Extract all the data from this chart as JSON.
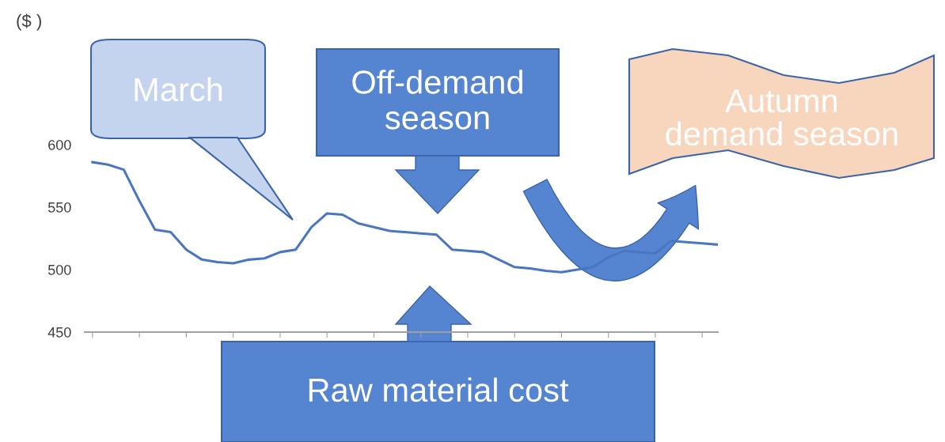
{
  "chart_data": {
    "type": "line",
    "categories": [
      null,
      null,
      null,
      null,
      null,
      null,
      null,
      null,
      null,
      null,
      null,
      null,
      null,
      null,
      null,
      null,
      null,
      null,
      null,
      null,
      null,
      null,
      null,
      null,
      null,
      null,
      null,
      null,
      null,
      null,
      null,
      null,
      null,
      null,
      null,
      null,
      null,
      null,
      null,
      null,
      null
    ],
    "series": [
      {
        "color": "#4a76c0",
        "values": [
          586,
          584,
          580,
          555,
          532,
          530,
          516,
          508,
          506,
          505,
          508,
          509,
          514,
          516,
          534,
          545,
          544,
          537,
          534,
          531,
          530,
          529,
          528,
          516,
          515,
          514,
          508,
          502,
          501,
          499,
          498,
          500,
          502,
          510,
          515,
          514,
          513,
          523,
          522,
          521,
          520
        ]
      }
    ],
    "ylim": [
      450,
      600
    ],
    "yticks": [
      450,
      500,
      550,
      600
    ],
    "annotations": [
      "($ )",
      "March",
      "Off-demand season",
      "Autumn demand season",
      "Raw material cost"
    ],
    "marker": "none",
    "line_style": "solid",
    "grid": false,
    "legend": false
  }
}
